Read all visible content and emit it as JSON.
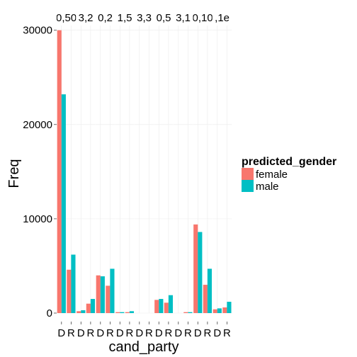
{
  "chart_data": {
    "type": "bar",
    "ylabel": "Freq",
    "xlabel": "cand_party",
    "ylim": [
      0,
      30500
    ],
    "y_ticks": [
      0,
      10000,
      20000,
      30000
    ],
    "y_tick_labels": [
      "0",
      "10000",
      "20000",
      "30000"
    ],
    "grid": true,
    "panel_labels": [
      "0,50",
      "3,2",
      "0,2",
      "1,5",
      "3,3",
      "0,5",
      "3,1",
      "0,10",
      ",1e"
    ],
    "panels": [
      {
        "label": "0,50",
        "categories": [
          "D",
          "R"
        ],
        "series": [
          {
            "name": "female",
            "values": [
              30000,
              4600
            ]
          },
          {
            "name": "male",
            "values": [
              23200,
              6200
            ]
          }
        ]
      },
      {
        "label": "3,2",
        "categories": [
          "D",
          "R"
        ],
        "series": [
          {
            "name": "female",
            "values": [
              200,
              1000
            ]
          },
          {
            "name": "male",
            "values": [
              300,
              1500
            ]
          }
        ]
      },
      {
        "label": "0,2",
        "categories": [
          "D",
          "R"
        ],
        "series": [
          {
            "name": "female",
            "values": [
              4000,
              2900
            ]
          },
          {
            "name": "male",
            "values": [
              3900,
              4700
            ]
          }
        ]
      },
      {
        "label": "1,5",
        "categories": [
          "D",
          "R"
        ],
        "series": [
          {
            "name": "female",
            "values": [
              100,
              100
            ]
          },
          {
            "name": "male",
            "values": [
              100,
              200
            ]
          }
        ]
      },
      {
        "label": "3,3",
        "categories": [
          "D",
          "R"
        ],
        "series": [
          {
            "name": "female",
            "values": [
              0,
              0
            ]
          },
          {
            "name": "male",
            "values": [
              0,
              0
            ]
          }
        ]
      },
      {
        "label": "0,5",
        "categories": [
          "D",
          "R"
        ],
        "series": [
          {
            "name": "female",
            "values": [
              1400,
              1100
            ]
          },
          {
            "name": "male",
            "values": [
              1500,
              1900
            ]
          }
        ]
      },
      {
        "label": "3,1",
        "categories": [
          "D",
          "R"
        ],
        "series": [
          {
            "name": "female",
            "values": [
              0,
              100
            ]
          },
          {
            "name": "male",
            "values": [
              0,
              100
            ]
          }
        ]
      },
      {
        "label": "0,10",
        "categories": [
          "D",
          "R"
        ],
        "series": [
          {
            "name": "female",
            "values": [
              9400,
              3000
            ]
          },
          {
            "name": "male",
            "values": [
              8600,
              4700
            ]
          }
        ]
      },
      {
        "label": ",1e",
        "categories": [
          "D",
          "R"
        ],
        "series": [
          {
            "name": "female",
            "values": [
              400,
              600
            ]
          },
          {
            "name": "male",
            "values": [
              500,
              1200
            ]
          }
        ]
      }
    ],
    "legend": {
      "title": "predicted_gender",
      "position": "right",
      "entries": [
        {
          "label": "female",
          "color": "#F8766D"
        },
        {
          "label": "male",
          "color": "#00BFC4"
        }
      ]
    }
  }
}
